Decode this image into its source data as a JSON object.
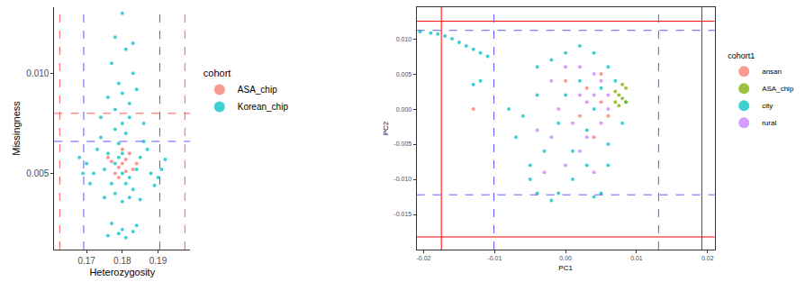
{
  "chart_data": [
    {
      "type": "scatter",
      "x_label": "Heterozygosity",
      "y_label": "Missingness",
      "legend_title": "cohort",
      "xlim": [
        0.161,
        0.199
      ],
      "xticks": [
        0.17,
        0.18,
        0.19
      ],
      "ylim": [
        0.0012,
        0.0133
      ],
      "yticks": [
        0.005,
        {
          "value": 0.01,
          "label": "0.010"
        }
      ],
      "grid": false,
      "legend": "right",
      "reference_lines": [
        {
          "axis": "x",
          "value": 0.1625,
          "color": "#ff5a5a",
          "line_style": "dash"
        },
        {
          "axis": "x",
          "value": 0.1975,
          "color": "#ff5a5a",
          "line_style": "dash"
        },
        {
          "axis": "x",
          "value": 0.1692,
          "color": "#5a5aff",
          "line_style": "dash"
        },
        {
          "axis": "x",
          "value": 0.1905,
          "color": "#5a5aff",
          "line_style": "dash"
        },
        {
          "axis": "y",
          "value": 0.008,
          "color": "#ff5a5a",
          "line_style": "dash"
        },
        {
          "axis": "y",
          "value": 0.0066,
          "color": "#5a5aff",
          "line_style": "dash"
        }
      ],
      "series": [
        {
          "name": "ASA_chip",
          "color": "#F8766D",
          "marker": "circle",
          "order": 2,
          "x": [
            0.18,
            0.179,
            0.181,
            0.178,
            0.182,
            0.177,
            0.183,
            0.18,
            0.179,
            0.181,
            0.176,
            0.184
          ],
          "y": [
            0.0055,
            0.0053,
            0.0057,
            0.005,
            0.006,
            0.0056,
            0.0052,
            0.0062,
            0.0048,
            0.0051,
            0.0058,
            0.0055
          ]
        },
        {
          "name": "Korean_chip",
          "color": "#00BFC4",
          "marker": "circle",
          "order": 1,
          "x": [
            0.18,
            0.178,
            0.182,
            0.176,
            0.184,
            0.179,
            0.181,
            0.177,
            0.183,
            0.175,
            0.185,
            0.172,
            0.188,
            0.17,
            0.19,
            0.174,
            0.186,
            0.18,
            0.178,
            0.182,
            0.18,
            0.179,
            0.183,
            0.177,
            0.181,
            0.18,
            0.184,
            0.176,
            0.173,
            0.187,
            0.171,
            0.189,
            0.178,
            0.182,
            0.18,
            0.175,
            0.185,
            0.169,
            0.191,
            0.177,
            0.179,
            0.181,
            0.183,
            0.176,
            0.184,
            0.18,
            0.178,
            0.182,
            0.174,
            0.186,
            0.18,
            0.179,
            0.181,
            0.168,
            0.192,
            0.178,
            0.183
          ],
          "y": [
            0.005,
            0.0055,
            0.0048,
            0.006,
            0.0052,
            0.0065,
            0.007,
            0.0045,
            0.0042,
            0.0052,
            0.0058,
            0.005,
            0.005,
            0.0055,
            0.0048,
            0.0068,
            0.0066,
            0.0075,
            0.0082,
            0.0085,
            0.009,
            0.0095,
            0.01,
            0.0105,
            0.0112,
            0.013,
            0.0092,
            0.0088,
            0.0062,
            0.0062,
            0.0045,
            0.0044,
            0.004,
            0.0038,
            0.0036,
            0.0038,
            0.0037,
            0.005,
            0.0052,
            0.0025,
            0.002,
            0.0018,
            0.0021,
            0.0019,
            0.0024,
            0.0022,
            0.0072,
            0.0078,
            0.0078,
            0.0075,
            0.006,
            0.0058,
            0.0045,
            0.0058,
            0.0057,
            0.0118,
            0.0115
          ]
        }
      ]
    },
    {
      "type": "scatter",
      "x_label": "PC1",
      "y_label": "PC2",
      "legend_title": "cohort1",
      "xlim": [
        -0.021,
        0.021
      ],
      "xticks": [
        -0.02,
        -0.01,
        {
          "value": 0,
          "label": "0.00"
        },
        0.01,
        0.02
      ],
      "ylim": [
        -0.02,
        0.0145
      ],
      "yticks": [
        -0.015,
        {
          "value": -0.01,
          "label": "-0.010"
        },
        -0.005,
        {
          "value": 0,
          "label": "0.000"
        },
        0.005,
        {
          "value": 0.01,
          "label": "0.010"
        }
      ],
      "grid": false,
      "legend": "right",
      "reference_lines": [
        {
          "axis": "x",
          "value": -0.0175,
          "color": "#ff0000",
          "line_style": "solid"
        },
        {
          "axis": "x",
          "value": 0.0192,
          "color": "#ff0000",
          "line_style": "solid"
        },
        {
          "axis": "x",
          "value": -0.0101,
          "color": "#5a5aff",
          "line_style": "dash"
        },
        {
          "axis": "x",
          "value": 0.0131,
          "color": "#5a5aff",
          "line_style": "dash"
        },
        {
          "axis": "y",
          "value": 0.0125,
          "color": "#ff0000",
          "line_style": "solid"
        },
        {
          "axis": "y",
          "value": -0.0182,
          "color": "#ff0000",
          "line_style": "solid"
        },
        {
          "axis": "y",
          "value": 0.0112,
          "color": "#5a5aff",
          "line_style": "dash"
        },
        {
          "axis": "y",
          "value": -0.0122,
          "color": "#5a5aff",
          "line_style": "dash"
        }
      ],
      "series": [
        {
          "name": "ansan",
          "color": "#F8766D",
          "marker": "circle",
          "order": 4,
          "x": [
            0.005,
            0.003,
            0.006,
            0.002,
            0.004,
            -0.013,
            0.0,
            0.005
          ],
          "y": [
            0.001,
            0.003,
            -0.001,
            -0.001,
            -0.004,
            0.0,
            0.004,
            0.005
          ]
        },
        {
          "name": "ASA_chip",
          "color": "#7CAE00",
          "marker": "circle",
          "order": 5,
          "x": [
            0.0075,
            0.008,
            0.0085,
            0.007,
            0.0075,
            0.0085,
            0.008,
            0.007
          ],
          "y": [
            0.002,
            0.0015,
            0.003,
            0.0025,
            0.0005,
            0.001,
            0.0035,
            0.001
          ]
        },
        {
          "name": "city",
          "color": "#00BFC4",
          "marker": "circle",
          "order": 1,
          "x": [
            -0.0205,
            -0.019,
            -0.018,
            -0.017,
            -0.016,
            -0.015,
            -0.014,
            -0.013,
            -0.012,
            -0.011,
            -0.004,
            -0.002,
            0.0,
            0.002,
            0.004,
            0.006,
            0.007,
            0.0085,
            0.008,
            0.006,
            0.003,
            0.001,
            -0.001,
            -0.002,
            -0.004,
            -0.005,
            -0.003,
            -0.001,
            0.0,
            0.002,
            0.004,
            0.005,
            0.003,
            0.001,
            -0.004,
            -0.006,
            -0.008,
            -0.007,
            -0.005,
            0.006,
            0.005,
            0.004,
            -0.013,
            -0.012
          ],
          "y": [
            0.011,
            0.0108,
            0.0107,
            0.0104,
            0.01,
            0.0095,
            0.009,
            0.0085,
            0.008,
            0.0075,
            0.006,
            0.007,
            0.008,
            0.009,
            0.008,
            0.006,
            0.004,
            0.001,
            -0.002,
            -0.005,
            -0.008,
            -0.01,
            -0.012,
            -0.013,
            -0.012,
            -0.01,
            -0.006,
            -0.002,
            0.002,
            0.004,
            0.0,
            0.003,
            -0.003,
            -0.006,
            0.002,
            -0.001,
            0.0,
            -0.004,
            -0.008,
            -0.008,
            -0.012,
            -0.0125,
            0.0035,
            0.004
          ]
        },
        {
          "name": "rural",
          "color": "#C77CFF",
          "marker": "circle",
          "order": 3,
          "x": [
            0.0,
            0.002,
            0.004,
            0.005,
            0.006,
            0.006,
            0.005,
            0.003,
            0.002,
            0.0,
            0.001,
            0.002,
            -0.002,
            -0.002,
            -0.003,
            0.004,
            -0.001,
            0.004,
            0.003,
            -0.004
          ],
          "y": [
            0.006,
            0.006,
            0.005,
            0.004,
            0.002,
            0.0,
            -0.002,
            -0.004,
            -0.006,
            -0.008,
            -0.002,
            0.002,
            0.004,
            -0.004,
            -0.009,
            -0.009,
            0.0,
            0.002,
            0.001,
            -0.003
          ]
        }
      ]
    }
  ]
}
